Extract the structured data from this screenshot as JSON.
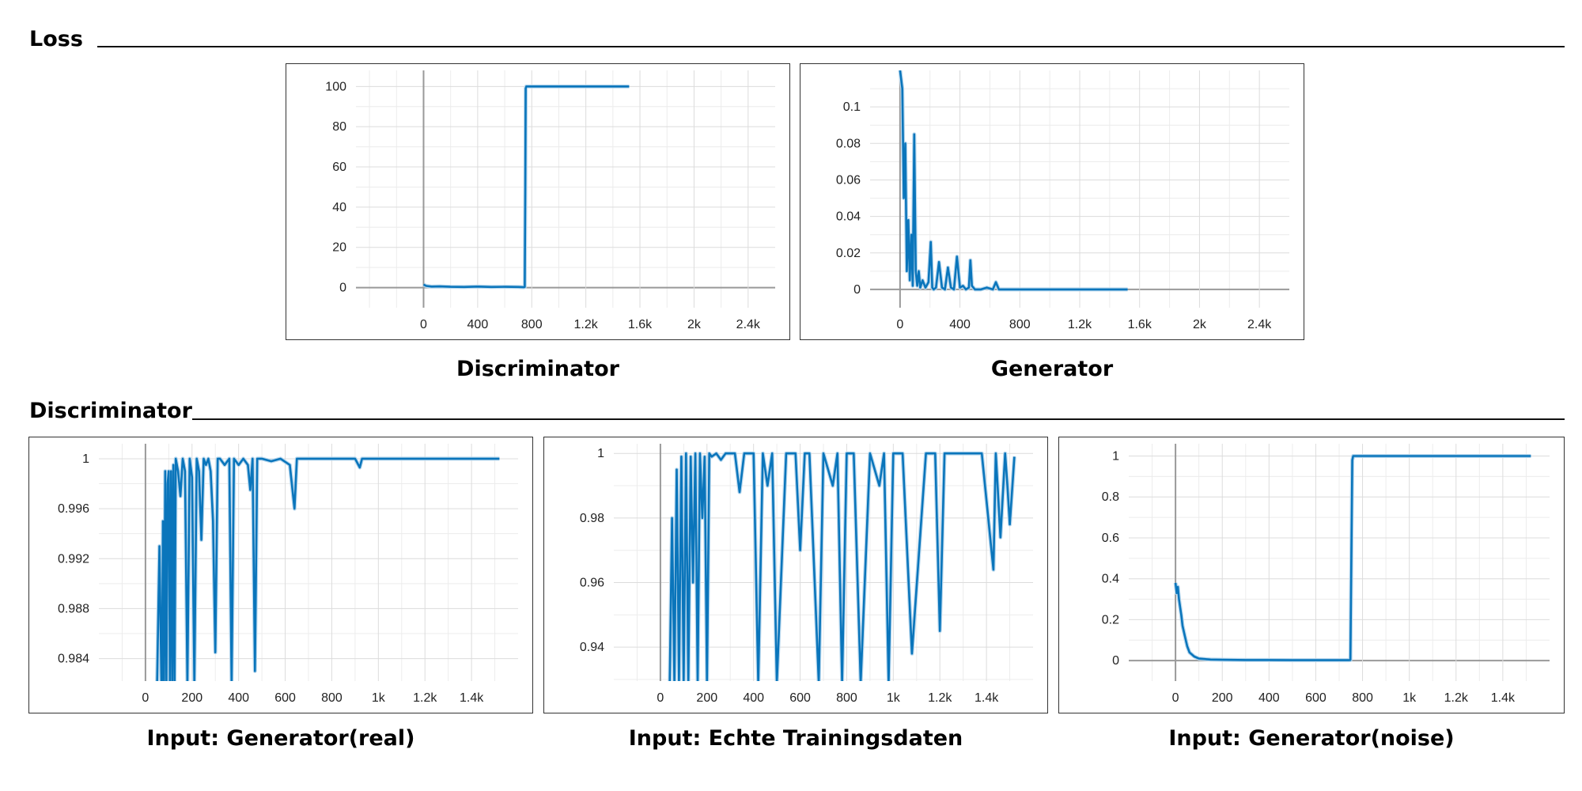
{
  "sections": {
    "loss": {
      "title": "Loss"
    },
    "discriminator": {
      "title": "Discriminator"
    }
  },
  "colors": {
    "line": "#0a75bb",
    "raw": "#b9d8ee",
    "grid": "#dcdcdc",
    "zero": "#999999"
  },
  "chart_data": [
    {
      "id": "loss-discriminator",
      "type": "line",
      "title": "Discriminator",
      "xlim": [
        -500,
        2600
      ],
      "ylim": [
        -10,
        108
      ],
      "x_ticks": [
        0,
        400,
        800,
        1200,
        1600,
        2000,
        2400
      ],
      "x_tick_labels": [
        "0",
        "400",
        "800",
        "1.2k",
        "1.6k",
        "2k",
        "2.4k"
      ],
      "y_ticks": [
        0,
        20,
        40,
        60,
        80,
        100
      ],
      "y_tick_labels": [
        "0",
        "20",
        "40",
        "60",
        "80",
        "100"
      ],
      "grid": true,
      "series": [
        {
          "x": [
            0,
            20,
            60,
            120,
            200,
            300,
            400,
            500,
            600,
            700,
            740,
            748,
            752,
            755,
            760,
            800,
            900,
            1000,
            1100,
            1200,
            1300,
            1400,
            1520
          ],
          "y": [
            1.5,
            0.8,
            0.5,
            0.6,
            0.4,
            0.3,
            0.5,
            0.3,
            0.4,
            0.3,
            0.2,
            0.3,
            50,
            99,
            100,
            100,
            100,
            100,
            100,
            100,
            100,
            100,
            100
          ]
        }
      ]
    },
    {
      "id": "loss-generator",
      "type": "line",
      "title": "Generator",
      "xlim": [
        -200,
        2600
      ],
      "ylim": [
        -0.01,
        0.12
      ],
      "x_ticks": [
        0,
        400,
        800,
        1200,
        1600,
        2000,
        2400
      ],
      "x_tick_labels": [
        "0",
        "400",
        "800",
        "1.2k",
        "1.6k",
        "2k",
        "2.4k"
      ],
      "y_ticks": [
        0,
        0.02,
        0.04,
        0.06,
        0.08,
        0.1
      ],
      "y_tick_labels": [
        "0",
        "0.02",
        "0.04",
        "0.06",
        "0.08",
        "0.1"
      ],
      "grid": true,
      "series": [
        {
          "x": [
            0,
            15,
            25,
            35,
            45,
            55,
            65,
            75,
            85,
            95,
            105,
            115,
            125,
            135,
            150,
            170,
            190,
            205,
            215,
            225,
            240,
            260,
            280,
            300,
            320,
            340,
            360,
            380,
            400,
            420,
            440,
            460,
            470,
            480,
            500,
            540,
            580,
            620,
            640,
            660,
            700,
            800,
            1000,
            1200,
            1400,
            1520
          ],
          "y": [
            0.12,
            0.11,
            0.05,
            0.08,
            0.01,
            0.038,
            0.005,
            0.03,
            0.002,
            0.085,
            0.01,
            0.002,
            0.01,
            0.001,
            0.005,
            0.001,
            0.004,
            0.026,
            0.001,
            0.0,
            0.001,
            0.015,
            0.001,
            0.0,
            0.012,
            0.001,
            0.0,
            0.018,
            0.001,
            0.002,
            0.0,
            0.001,
            0.016,
            0.002,
            0.0,
            0.0,
            0.001,
            0.0,
            0.004,
            0.0,
            0.0,
            0.0,
            0.0,
            0.0,
            0.0,
            0.0
          ]
        }
      ]
    },
    {
      "id": "disc-generator-real",
      "type": "line",
      "title": "Input: Generator(real)",
      "xlim": [
        -200,
        1600
      ],
      "ylim": [
        0.9822,
        1.0012
      ],
      "x_ticks": [
        0,
        200,
        400,
        600,
        800,
        1000,
        1200,
        1400
      ],
      "x_tick_labels": [
        "0",
        "200",
        "400",
        "600",
        "800",
        "1k",
        "1.2k",
        "1.4k"
      ],
      "y_ticks": [
        0.984,
        0.988,
        0.992,
        0.996,
        1.0
      ],
      "y_tick_labels": [
        "0.984",
        "0.988",
        "0.992",
        "0.996",
        "1"
      ],
      "grid": true,
      "series": [
        {
          "x": [
            40,
            50,
            60,
            70,
            75,
            80,
            85,
            90,
            95,
            100,
            105,
            110,
            115,
            120,
            125,
            130,
            140,
            150,
            160,
            170,
            180,
            190,
            200,
            210,
            220,
            230,
            240,
            250,
            260,
            270,
            280,
            290,
            300,
            310,
            320,
            340,
            360,
            370,
            380,
            400,
            420,
            440,
            450,
            460,
            470,
            480,
            500,
            540,
            580,
            620,
            640,
            650,
            660,
            700,
            800,
            900,
            920,
            930,
            1000,
            1100,
            1200,
            1300,
            1400,
            1520
          ],
          "y": [
            0.98,
            0.982,
            0.993,
            0.98,
            0.995,
            0.982,
            0.999,
            0.982,
            0.998,
            0.999,
            0.982,
            0.999,
            0.982,
            0.9995,
            0.982,
            1.0,
            0.999,
            0.997,
            1.0,
            0.999,
            0.982,
            1.0,
            0.9985,
            0.982,
            1.0,
            0.999,
            0.9935,
            1.0,
            0.9995,
            1.0,
            0.999,
            0.995,
            0.9845,
            1.0,
            1.0,
            0.9995,
            1.0,
            0.982,
            1.0,
            0.9995,
            1.0,
            0.9995,
            0.9975,
            1.0,
            0.983,
            1.0,
            1.0,
            0.9998,
            1.0,
            0.9995,
            0.996,
            1.0,
            1.0,
            1.0,
            1.0,
            1.0,
            0.9993,
            1.0,
            1.0,
            1.0,
            1.0,
            1.0,
            1.0,
            1.0
          ]
        }
      ]
    },
    {
      "id": "disc-real-training-data",
      "type": "line",
      "title": "Input: Echte Trainingsdaten",
      "xlim": [
        -200,
        1600
      ],
      "ylim": [
        0.9295,
        1.003
      ],
      "x_ticks": [
        0,
        200,
        400,
        600,
        800,
        1000,
        1200,
        1400
      ],
      "x_tick_labels": [
        "0",
        "200",
        "400",
        "600",
        "800",
        "1k",
        "1.2k",
        "1.4k"
      ],
      "y_ticks": [
        0.94,
        0.96,
        0.98,
        1.0
      ],
      "y_tick_labels": [
        "0.94",
        "0.96",
        "0.98",
        "1"
      ],
      "grid": true,
      "series": [
        {
          "x": [
            40,
            50,
            60,
            70,
            80,
            90,
            100,
            110,
            120,
            130,
            140,
            150,
            160,
            170,
            180,
            190,
            200,
            210,
            220,
            240,
            260,
            280,
            300,
            320,
            340,
            360,
            380,
            400,
            420,
            440,
            460,
            480,
            500,
            540,
            560,
            580,
            600,
            620,
            640,
            680,
            700,
            740,
            760,
            780,
            800,
            830,
            860,
            900,
            940,
            960,
            980,
            1000,
            1040,
            1080,
            1140,
            1180,
            1200,
            1220,
            1300,
            1380,
            1430,
            1440,
            1460,
            1480,
            1490,
            1500,
            1520
          ],
          "y": [
            0.929,
            0.98,
            0.929,
            0.995,
            0.929,
            0.999,
            0.929,
            1.0,
            0.929,
            0.999,
            0.96,
            1.0,
            0.929,
            1.0,
            0.98,
            0.999,
            0.929,
            1.0,
            0.999,
            1.0,
            0.998,
            1.0,
            1.0,
            1.0,
            0.988,
            1.0,
            1.0,
            1.0,
            0.929,
            1.0,
            0.99,
            1.0,
            0.929,
            1.0,
            1.0,
            1.0,
            0.97,
            1.0,
            1.0,
            0.929,
            1.0,
            0.99,
            1.0,
            0.929,
            1.0,
            1.0,
            0.929,
            1.0,
            0.99,
            1.0,
            0.929,
            1.0,
            1.0,
            0.938,
            1.0,
            1.0,
            0.945,
            1.0,
            1.0,
            1.0,
            0.964,
            1.0,
            0.974,
            1.0,
            0.99,
            0.978,
            0.999
          ]
        }
      ]
    },
    {
      "id": "disc-generator-noise",
      "type": "line",
      "title": "Input: Generator(noise)",
      "xlim": [
        -200,
        1600
      ],
      "ylim": [
        -0.1,
        1.06
      ],
      "x_ticks": [
        0,
        200,
        400,
        600,
        800,
        1000,
        1200,
        1400
      ],
      "x_tick_labels": [
        "0",
        "200",
        "400",
        "600",
        "800",
        "1k",
        "1.2k",
        "1.4k"
      ],
      "y_ticks": [
        0,
        0.2,
        0.4,
        0.6,
        0.8,
        1.0
      ],
      "y_tick_labels": [
        "0",
        "0.2",
        "0.4",
        "0.6",
        "0.8",
        "1"
      ],
      "grid": true,
      "series": [
        {
          "x": [
            0,
            5,
            10,
            15,
            20,
            25,
            30,
            40,
            50,
            60,
            80,
            100,
            150,
            200,
            300,
            400,
            500,
            600,
            700,
            740,
            748,
            752,
            756,
            760,
            800,
            900,
            1000,
            1100,
            1200,
            1300,
            1400,
            1520
          ],
          "y": [
            0.38,
            0.33,
            0.36,
            0.3,
            0.26,
            0.22,
            0.17,
            0.12,
            0.07,
            0.04,
            0.02,
            0.01,
            0.005,
            0.004,
            0.003,
            0.003,
            0.002,
            0.002,
            0.002,
            0.002,
            0.003,
            0.5,
            0.98,
            1.0,
            1.0,
            1.0,
            1.0,
            1.0,
            1.0,
            1.0,
            1.0,
            1.0
          ]
        }
      ]
    }
  ]
}
